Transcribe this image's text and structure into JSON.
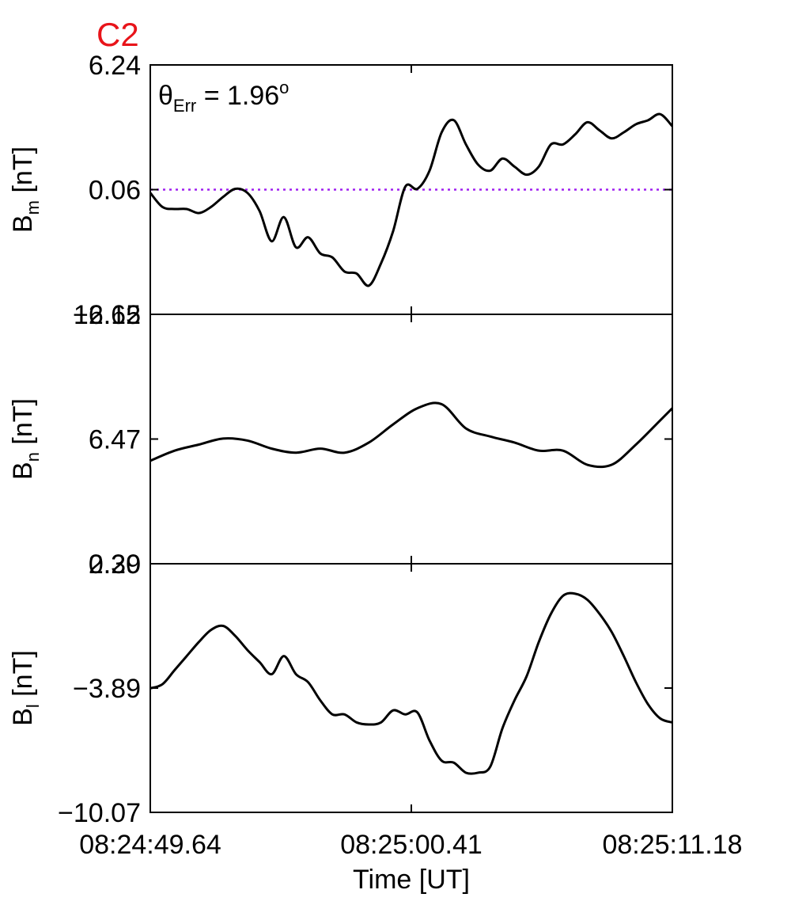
{
  "figure": {
    "title": "C2",
    "title_color": "#e8141a",
    "annotation": {
      "symbol": "θ",
      "subscript": "Err",
      "value": " =  1.96",
      "superscript": "o"
    },
    "xlabel": "Time [UT]",
    "xticks": [
      "08:24:49.64",
      "08:25:00.41",
      "08:25:11.18"
    ]
  },
  "chart_data": [
    {
      "type": "line",
      "panel": "Bm",
      "ylabel": {
        "main": "B",
        "sub": "m",
        "unit": " [nT]"
      },
      "ylim": [
        -6.12,
        6.24
      ],
      "yticks": [
        "6.24",
        "0.06",
        "-6.12"
      ],
      "x": [
        0,
        0.5,
        1,
        1.5,
        2,
        2.5,
        3,
        3.5,
        4,
        4.5,
        5,
        5.5,
        6,
        6.5,
        7,
        7.5,
        8,
        8.5,
        9,
        9.5,
        10,
        10.5,
        11,
        11.5,
        12,
        12.5,
        13,
        13.5,
        14,
        14.5,
        15,
        15.5,
        16,
        16.5,
        17,
        17.5,
        18,
        18.5,
        19,
        19.5,
        20,
        20.5,
        21,
        21.5
      ],
      "series": [
        {
          "color": "#000000",
          "values": [
            -0.1,
            -0.8,
            -0.9,
            -0.9,
            -1.1,
            -0.8,
            -0.3,
            0.1,
            -0.1,
            -1.0,
            -2.5,
            -1.3,
            -2.8,
            -2.3,
            -3.1,
            -3.3,
            -4.0,
            -4.1,
            -4.7,
            -3.6,
            -2.0,
            0.2,
            0.1,
            1.0,
            2.9,
            3.5,
            2.3,
            1.3,
            1.0,
            1.6,
            1.2,
            0.8,
            1.2,
            2.3,
            2.3,
            2.8,
            3.4,
            3.0,
            2.6,
            2.9,
            3.3,
            3.5,
            3.8,
            3.2
          ]
        }
      ],
      "reference_line": {
        "y": 0.06,
        "color": "#a020f0",
        "style": "dotted"
      }
    },
    {
      "type": "line",
      "panel": "Bn",
      "ylabel": {
        "main": "B",
        "sub": "n",
        "unit": " [nT]"
      },
      "ylim": [
        0.3,
        12.65
      ],
      "yticks": [
        "12.65",
        "6.47",
        "0.30"
      ],
      "x": [
        0,
        1,
        2,
        3,
        4,
        5,
        6,
        7,
        8,
        9,
        10,
        11,
        12,
        13,
        14,
        15,
        16,
        17,
        18,
        19,
        20,
        21,
        21.5
      ],
      "series": [
        {
          "color": "#000000",
          "values": [
            5.4,
            5.9,
            6.2,
            6.5,
            6.4,
            6.0,
            5.8,
            6.0,
            5.8,
            6.3,
            7.2,
            8.0,
            8.2,
            7.0,
            6.6,
            6.3,
            5.9,
            5.9,
            5.2,
            5.2,
            6.2,
            7.4,
            8.0
          ]
        }
      ]
    },
    {
      "type": "line",
      "panel": "Bl",
      "ylabel": {
        "main": "B",
        "sub": "l",
        "unit": " [nT]"
      },
      "ylim": [
        -10.07,
        2.29
      ],
      "yticks": [
        "2.29",
        "-3.89",
        "-10.07"
      ],
      "x": [
        0,
        0.5,
        1,
        1.5,
        2,
        2.5,
        3,
        3.5,
        4,
        4.5,
        5,
        5.5,
        6,
        6.5,
        7,
        7.5,
        8,
        8.5,
        9,
        9.5,
        10,
        10.5,
        11,
        11.5,
        12,
        12.5,
        13,
        13.5,
        14,
        14.5,
        15,
        15.5,
        16,
        16.5,
        17,
        17.5,
        18,
        18.5,
        19,
        19.5,
        20,
        20.5,
        21,
        21.5
      ],
      "series": [
        {
          "color": "#000000",
          "values": [
            -3.9,
            -3.7,
            -3.0,
            -2.3,
            -1.6,
            -1.0,
            -0.8,
            -1.3,
            -2.0,
            -2.6,
            -3.2,
            -2.3,
            -3.2,
            -3.6,
            -4.5,
            -5.2,
            -5.2,
            -5.6,
            -5.7,
            -5.6,
            -5.0,
            -5.2,
            -5.1,
            -6.5,
            -7.5,
            -7.6,
            -8.1,
            -8.1,
            -7.8,
            -5.9,
            -4.5,
            -3.3,
            -1.6,
            -0.2,
            0.7,
            0.8,
            0.5,
            -0.2,
            -1.1,
            -2.3,
            -3.6,
            -4.7,
            -5.4,
            -5.6
          ]
        }
      ]
    }
  ]
}
